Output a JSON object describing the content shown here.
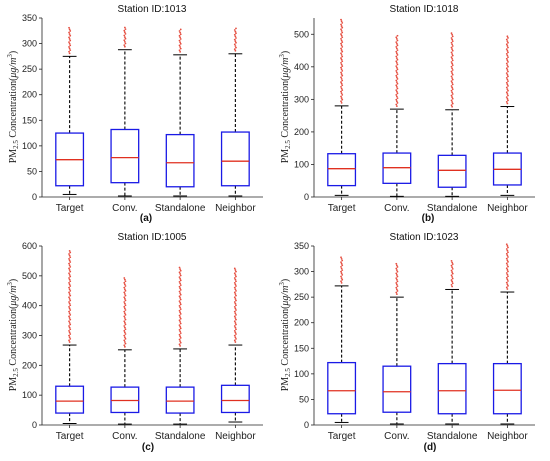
{
  "figure": {
    "ylabel_base": "PM",
    "ylabel_sub": "2.5",
    "ylabel_rest": " Concentration(",
    "ylabel_unit": "μg/m",
    "ylabel_sup": "3",
    "ylabel_close": ")"
  },
  "chart_data": [
    {
      "type": "box",
      "title": "Station ID:1013",
      "panel_label": "(a)",
      "categories": [
        "Target",
        "Conv.",
        "Standalone",
        "Neighbor"
      ],
      "ylim": [
        0,
        350
      ],
      "yticks": [
        0,
        50,
        100,
        150,
        200,
        250,
        300,
        350
      ],
      "series": [
        {
          "category": "Target",
          "min": 5,
          "q1": 22,
          "median": 73,
          "q3": 125,
          "max": 275,
          "outlier_max": 333
        },
        {
          "category": "Conv.",
          "min": 2,
          "q1": 28,
          "median": 77,
          "q3": 132,
          "max": 288,
          "outlier_max": 333
        },
        {
          "category": "Standalone",
          "min": 2,
          "q1": 20,
          "median": 67,
          "q3": 122,
          "max": 278,
          "outlier_max": 330
        },
        {
          "category": "Neighbor",
          "min": 2,
          "q1": 22,
          "median": 70,
          "q3": 127,
          "max": 280,
          "outlier_max": 330
        }
      ]
    },
    {
      "type": "box",
      "title": "Station ID:1018",
      "panel_label": "(b)",
      "categories": [
        "Target",
        "Conv.",
        "Standalone",
        "Neighbor"
      ],
      "ylim": [
        0,
        550
      ],
      "yticks": [
        0,
        100,
        200,
        300,
        400,
        500
      ],
      "series": [
        {
          "category": "Target",
          "min": 5,
          "q1": 35,
          "median": 87,
          "q3": 133,
          "max": 280,
          "outlier_max": 545
        },
        {
          "category": "Conv.",
          "min": 2,
          "q1": 42,
          "median": 90,
          "q3": 135,
          "max": 270,
          "outlier_max": 500
        },
        {
          "category": "Standalone",
          "min": 2,
          "q1": 30,
          "median": 82,
          "q3": 128,
          "max": 268,
          "outlier_max": 505
        },
        {
          "category": "Neighbor",
          "min": 5,
          "q1": 37,
          "median": 85,
          "q3": 135,
          "max": 278,
          "outlier_max": 495
        }
      ]
    },
    {
      "type": "box",
      "title": "Station ID:1005",
      "panel_label": "(c)",
      "categories": [
        "Target",
        "Conv.",
        "Standalone",
        "Neighbor"
      ],
      "ylim": [
        0,
        600
      ],
      "yticks": [
        0,
        100,
        200,
        300,
        400,
        500,
        600
      ],
      "series": [
        {
          "category": "Target",
          "min": 5,
          "q1": 40,
          "median": 80,
          "q3": 130,
          "max": 268,
          "outlier_max": 585
        },
        {
          "category": "Conv.",
          "min": 3,
          "q1": 42,
          "median": 82,
          "q3": 127,
          "max": 252,
          "outlier_max": 497
        },
        {
          "category": "Standalone",
          "min": 3,
          "q1": 40,
          "median": 80,
          "q3": 127,
          "max": 255,
          "outlier_max": 530
        },
        {
          "category": "Neighbor",
          "min": 10,
          "q1": 42,
          "median": 82,
          "q3": 133,
          "max": 268,
          "outlier_max": 528
        }
      ]
    },
    {
      "type": "box",
      "title": "Station ID:1023",
      "panel_label": "(d)",
      "categories": [
        "Target",
        "Conv.",
        "Standalone",
        "Neighbor"
      ],
      "ylim": [
        0,
        350
      ],
      "yticks": [
        0,
        50,
        100,
        150,
        200,
        250,
        300,
        350
      ],
      "series": [
        {
          "category": "Target",
          "min": 5,
          "q1": 22,
          "median": 67,
          "q3": 122,
          "max": 272,
          "outlier_max": 330
        },
        {
          "category": "Conv.",
          "min": 2,
          "q1": 25,
          "median": 65,
          "q3": 115,
          "max": 250,
          "outlier_max": 318
        },
        {
          "category": "Standalone",
          "min": 2,
          "q1": 22,
          "median": 67,
          "q3": 120,
          "max": 265,
          "outlier_max": 323
        },
        {
          "category": "Neighbor",
          "min": 2,
          "q1": 22,
          "median": 68,
          "q3": 120,
          "max": 260,
          "outlier_max": 355
        }
      ]
    }
  ],
  "colors": {
    "box": "#1a1ae6",
    "median": "#e03020",
    "whisker": "#000000",
    "outlier": "#e03020",
    "axis": "#222222"
  }
}
